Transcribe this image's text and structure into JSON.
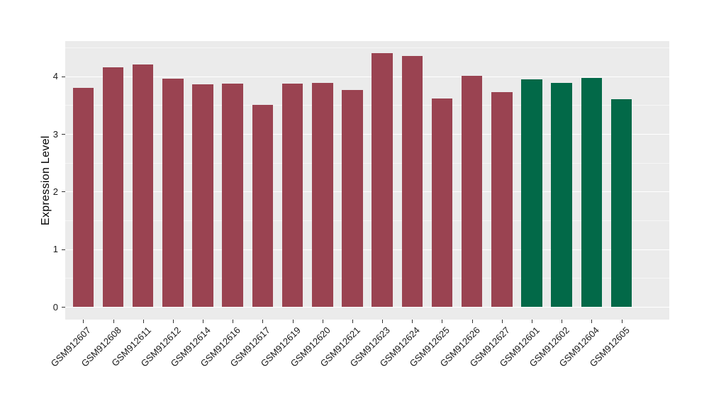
{
  "figure": {
    "background_color": "#FFFFFF",
    "panel_background_color": "#EBEBEB",
    "grid_major_color": "#FFFFFF",
    "grid_minor_color": "rgba(255,255,255,0.55)",
    "tick_color": "#333333",
    "axis_text_color": "#1a1a1a"
  },
  "chart_data": {
    "type": "bar",
    "title": "",
    "xlabel": "",
    "ylabel": "Expression Level",
    "categories": [
      "GSM912607",
      "GSM912608",
      "GSM912611",
      "GSM912612",
      "GSM912614",
      "GSM912616",
      "GSM912617",
      "GSM912619",
      "GSM912620",
      "GSM912621",
      "GSM912623",
      "GSM912624",
      "GSM912625",
      "GSM912626",
      "GSM912627",
      "GSM912601",
      "GSM912602",
      "GSM912604",
      "GSM912605"
    ],
    "values": [
      3.8,
      4.15,
      4.2,
      3.96,
      3.86,
      3.87,
      3.51,
      3.87,
      3.88,
      3.76,
      4.4,
      4.35,
      3.62,
      4.01,
      3.73,
      3.95,
      3.88,
      3.97,
      3.6
    ],
    "bar_colors": [
      "#9A4351",
      "#9A4351",
      "#9A4351",
      "#9A4351",
      "#9A4351",
      "#9A4351",
      "#9A4351",
      "#9A4351",
      "#9A4351",
      "#9A4351",
      "#9A4351",
      "#9A4351",
      "#9A4351",
      "#9A4351",
      "#9A4351",
      "#026948",
      "#026948",
      "#026948",
      "#026948"
    ],
    "group_colors": {
      "group1": "#9A4351",
      "group2": "#026948"
    },
    "yticks": [
      0,
      1,
      2,
      3,
      4
    ],
    "yticks_minor": [
      0.5,
      1.5,
      2.5,
      3.5,
      4.5
    ],
    "ylim": [
      -0.22,
      4.61
    ],
    "bar_width_fraction": 0.7,
    "grid": true,
    "legend": "none"
  }
}
